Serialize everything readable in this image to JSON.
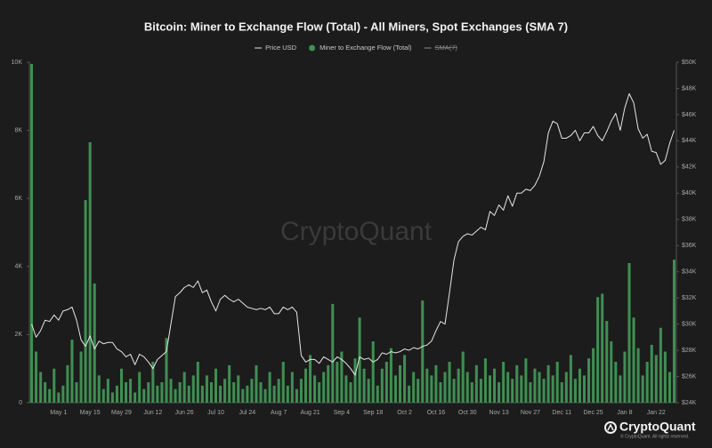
{
  "chart_data": {
    "type": "bar",
    "title": "Bitcoin: Miner to Exchange Flow (Total) - All Miners, Spot Exchanges (SMA 7)",
    "watermark": "CryptoQuant",
    "logo_text": "CryptoQuant",
    "copyright": "© CryptoQuant. All rights reserved.",
    "categories": [
      null,
      null,
      null,
      null,
      null,
      null,
      "May 1",
      null,
      null,
      null,
      null,
      null,
      null,
      "May 15",
      null,
      null,
      null,
      null,
      null,
      null,
      "May 29",
      null,
      null,
      null,
      null,
      null,
      null,
      "Jun 12",
      null,
      null,
      null,
      null,
      null,
      null,
      "Jun 26",
      null,
      null,
      null,
      null,
      null,
      null,
      "Jul 10",
      null,
      null,
      null,
      null,
      null,
      null,
      "Jul 24",
      null,
      null,
      null,
      null,
      null,
      null,
      "Aug 7",
      null,
      null,
      null,
      null,
      null,
      null,
      "Aug 21",
      null,
      null,
      null,
      null,
      null,
      null,
      "Sep 4",
      null,
      null,
      null,
      null,
      null,
      null,
      "Sep 18",
      null,
      null,
      null,
      null,
      null,
      null,
      "Oct 2",
      null,
      null,
      null,
      null,
      null,
      null,
      "Oct 16",
      null,
      null,
      null,
      null,
      null,
      null,
      "Oct 30",
      null,
      null,
      null,
      null,
      null,
      null,
      "Nov 13",
      null,
      null,
      null,
      null,
      null,
      null,
      "Nov 27",
      null,
      null,
      null,
      null,
      null,
      null,
      "Dec 11",
      null,
      null,
      null,
      null,
      null,
      null,
      "Dec 25",
      null,
      null,
      null,
      null,
      null,
      null,
      "Jan 8",
      null,
      null,
      null,
      null,
      null,
      null,
      "Jan 22",
      null,
      null,
      null,
      null
    ],
    "series": [
      {
        "name": "Price USD",
        "type": "line",
        "axis": "y2",
        "color": "#e6e6e6",
        "values": [
          30000,
          29000,
          29500,
          30300,
          30200,
          30700,
          30300,
          31000,
          31100,
          31300,
          30300,
          28800,
          28300,
          29100,
          28100,
          28700,
          28500,
          28600,
          28600,
          28100,
          27900,
          27500,
          27700,
          26900,
          27700,
          27500,
          27100,
          26600,
          27300,
          27600,
          27900,
          30000,
          32100,
          32400,
          32800,
          33000,
          32800,
          33300,
          32400,
          32600,
          31700,
          31000,
          31900,
          32200,
          31900,
          31700,
          31900,
          31600,
          31300,
          31200,
          31100,
          31200,
          31100,
          31300,
          30800,
          30800,
          31300,
          31100,
          31300,
          30900,
          27600,
          27100,
          27300,
          27300,
          27000,
          27500,
          27300,
          27100,
          27500,
          27300,
          27000,
          26600,
          26100,
          27500,
          27300,
          27400,
          27100,
          27300,
          27800,
          27700,
          27900,
          27800,
          27900,
          28100,
          28000,
          28200,
          28100,
          28300,
          28400,
          28700,
          29500,
          30200,
          30000,
          32400,
          34900,
          36300,
          36700,
          36900,
          36800,
          37100,
          37400,
          37200,
          38600,
          38300,
          39100,
          38700,
          39800,
          39000,
          40000,
          40000,
          40300,
          40200,
          40600,
          41300,
          42400,
          44600,
          45500,
          45300,
          44200,
          44200,
          44400,
          44800,
          44000,
          44600,
          44600,
          45100,
          44400,
          44000,
          44700,
          45500,
          46100,
          44800,
          46500,
          47600,
          46900,
          44900,
          44200,
          44500,
          43200,
          43100,
          42200,
          42500,
          43800,
          44800
        ]
      },
      {
        "name": "Miner to Exchange Flow (Total)",
        "type": "bar",
        "color": "#3f8f52",
        "values": [
          9950,
          1500,
          900,
          600,
          400,
          1000,
          300,
          500,
          1100,
          1850,
          600,
          1500,
          5950,
          7650,
          3500,
          800,
          400,
          700,
          300,
          500,
          1000,
          600,
          700,
          300,
          900,
          400,
          600,
          1200,
          500,
          600,
          1900,
          700,
          400,
          600,
          900,
          500,
          800,
          1200,
          500,
          800,
          600,
          1000,
          500,
          700,
          1100,
          600,
          800,
          400,
          500,
          700,
          1100,
          600,
          400,
          900,
          500,
          700,
          1200,
          500,
          900,
          400,
          700,
          1000,
          1400,
          800,
          600,
          900,
          1100,
          2900,
          1200,
          1500,
          800,
          600,
          1300,
          2500,
          1000,
          700,
          1800,
          500,
          1000,
          1200,
          1600,
          800,
          1100,
          1400,
          500,
          900,
          700,
          3000,
          1000,
          800,
          1100,
          600,
          900,
          1200,
          700,
          1000,
          1500,
          900,
          600,
          1100,
          700,
          1300,
          800,
          1000,
          600,
          1200,
          900,
          700,
          1100,
          800,
          1300,
          600,
          1000,
          900,
          700,
          1100,
          800,
          1200,
          600,
          900,
          1400,
          700,
          1000,
          800,
          1300,
          1600,
          3100,
          3200,
          2400,
          1800,
          1200,
          800,
          1500,
          4100,
          2500,
          1600,
          800,
          1200,
          1700,
          1400,
          2200,
          1500,
          900,
          4200
        ]
      },
      {
        "name": "SMA(7)",
        "type": "line",
        "hidden": true,
        "color": "#8a8a8a"
      }
    ],
    "ylim": [
      0,
      10000
    ],
    "yticks": [
      0,
      {
        "value": 2000,
        "label": "2K"
      },
      {
        "value": 4000,
        "label": "4K"
      },
      {
        "value": 6000,
        "label": "6K"
      },
      {
        "value": 8000,
        "label": "8K"
      },
      {
        "value": 10000,
        "label": "10K"
      }
    ],
    "y2lim": [
      24000,
      50000
    ],
    "y2ticks": [
      {
        "value": 24000,
        "label": "$24K"
      },
      {
        "value": 26000,
        "label": "$26K"
      },
      {
        "value": 28000,
        "label": "$28K"
      },
      {
        "value": 30000,
        "label": "$30K"
      },
      {
        "value": 32000,
        "label": "$32K"
      },
      {
        "value": 34000,
        "label": "$34K"
      },
      {
        "value": 36000,
        "label": "$36K"
      },
      {
        "value": 38000,
        "label": "$38K"
      },
      {
        "value": 40000,
        "label": "$40K"
      },
      {
        "value": 42000,
        "label": "$42K"
      },
      {
        "value": 44000,
        "label": "$44K"
      },
      {
        "value": 46000,
        "label": "$46K"
      },
      {
        "value": 48000,
        "label": "$48K"
      },
      {
        "value": 50000,
        "label": "$50K"
      }
    ],
    "grid": false
  }
}
